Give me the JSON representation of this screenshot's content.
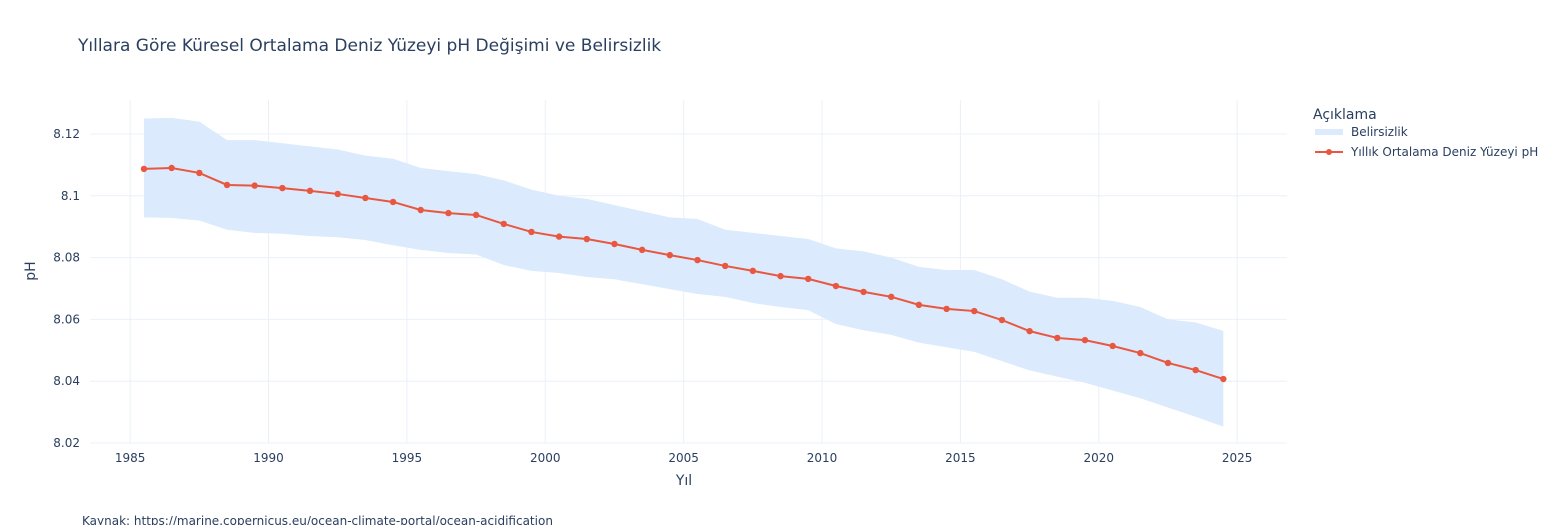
{
  "chart_data": {
    "type": "line",
    "title": "Yıllara Göre Küresel Ortalama Deniz Yüzeyi pH Değişimi ve Belirsizlik",
    "xlabel": "Yıl",
    "ylabel": "pH",
    "xlim": [
      1983.55,
      2026.8
    ],
    "ylim": [
      8.02,
      8.131
    ],
    "x_ticks": [
      1985,
      1990,
      1995,
      2000,
      2005,
      2010,
      2015,
      2020,
      2025
    ],
    "x_tick_labels": [
      "1985",
      "1990",
      "1995",
      "2000",
      "2005",
      "2010",
      "2015",
      "2020",
      "2025"
    ],
    "y_ticks": [
      8.02,
      8.04,
      8.06,
      8.08,
      8.1,
      8.12
    ],
    "y_tick_labels": [
      "8.02",
      "8.04",
      "8.06",
      "8.08",
      "8.1",
      "8.12"
    ],
    "grid": true,
    "legend_title": "Açıklama",
    "legend_position": "top-right, outside",
    "x": [
      1985.5,
      1986.5,
      1987.5,
      1988.5,
      1989.5,
      1990.5,
      1991.5,
      1992.5,
      1993.5,
      1994.5,
      1995.5,
      1996.5,
      1997.5,
      1998.5,
      1999.5,
      2000.5,
      2001.5,
      2002.5,
      2003.5,
      2004.5,
      2005.5,
      2006.5,
      2007.5,
      2008.5,
      2009.5,
      2010.5,
      2011.5,
      2012.5,
      2013.5,
      2014.5,
      2015.5,
      2016.5,
      2017.5,
      2018.5,
      2019.5,
      2020.5,
      2021.5,
      2022.5,
      2023.5,
      2024.5
    ],
    "series": [
      {
        "name": "Belirsizlik",
        "kind": "band",
        "color": "#dbeafc",
        "upper": [
          8.125,
          8.1252,
          8.124,
          8.118,
          8.118,
          8.117,
          8.116,
          8.115,
          8.113,
          8.112,
          8.109,
          8.108,
          8.107,
          8.105,
          8.102,
          8.1,
          8.099,
          8.097,
          8.095,
          8.093,
          8.0925,
          8.089,
          8.088,
          8.087,
          8.086,
          8.083,
          8.082,
          8.08,
          8.077,
          8.076,
          8.076,
          8.073,
          8.069,
          8.067,
          8.067,
          8.066,
          8.064,
          8.06,
          8.059,
          8.0563
        ],
        "lower": [
          8.093,
          8.0928,
          8.092,
          8.089,
          8.088,
          8.0877,
          8.087,
          8.0866,
          8.0857,
          8.084,
          8.0825,
          8.0815,
          8.081,
          8.0776,
          8.0757,
          8.075,
          8.0737,
          8.073,
          8.0714,
          8.0698,
          8.0682,
          8.0673,
          8.0653,
          8.064,
          8.063,
          8.0585,
          8.0565,
          8.055,
          8.0525,
          8.051,
          8.0495,
          8.0465,
          8.0435,
          8.0415,
          8.0395,
          8.037,
          8.0345,
          8.0315,
          8.0285,
          8.0253
        ]
      },
      {
        "name": "Yıllık Ortalama Deniz Yüzeyi pH",
        "kind": "line+markers",
        "color": "#e8573f",
        "values": [
          8.1087,
          8.109,
          8.1074,
          8.1035,
          8.1033,
          8.1025,
          8.1016,
          8.1006,
          8.0993,
          8.098,
          8.0954,
          8.0944,
          8.0938,
          8.0909,
          8.0883,
          8.0868,
          8.086,
          8.0844,
          8.0825,
          8.0808,
          8.0792,
          8.0773,
          8.0757,
          8.074,
          8.0731,
          8.0708,
          8.0689,
          8.0673,
          8.0647,
          8.0634,
          8.0627,
          8.0598,
          8.0562,
          8.054,
          8.0533,
          8.0514,
          8.0491,
          8.0459,
          8.0436,
          8.0407
        ]
      }
    ],
    "annotation": "Kaynak: https://marine.copernicus.eu/ocean-climate-portal/ocean-acidification"
  }
}
